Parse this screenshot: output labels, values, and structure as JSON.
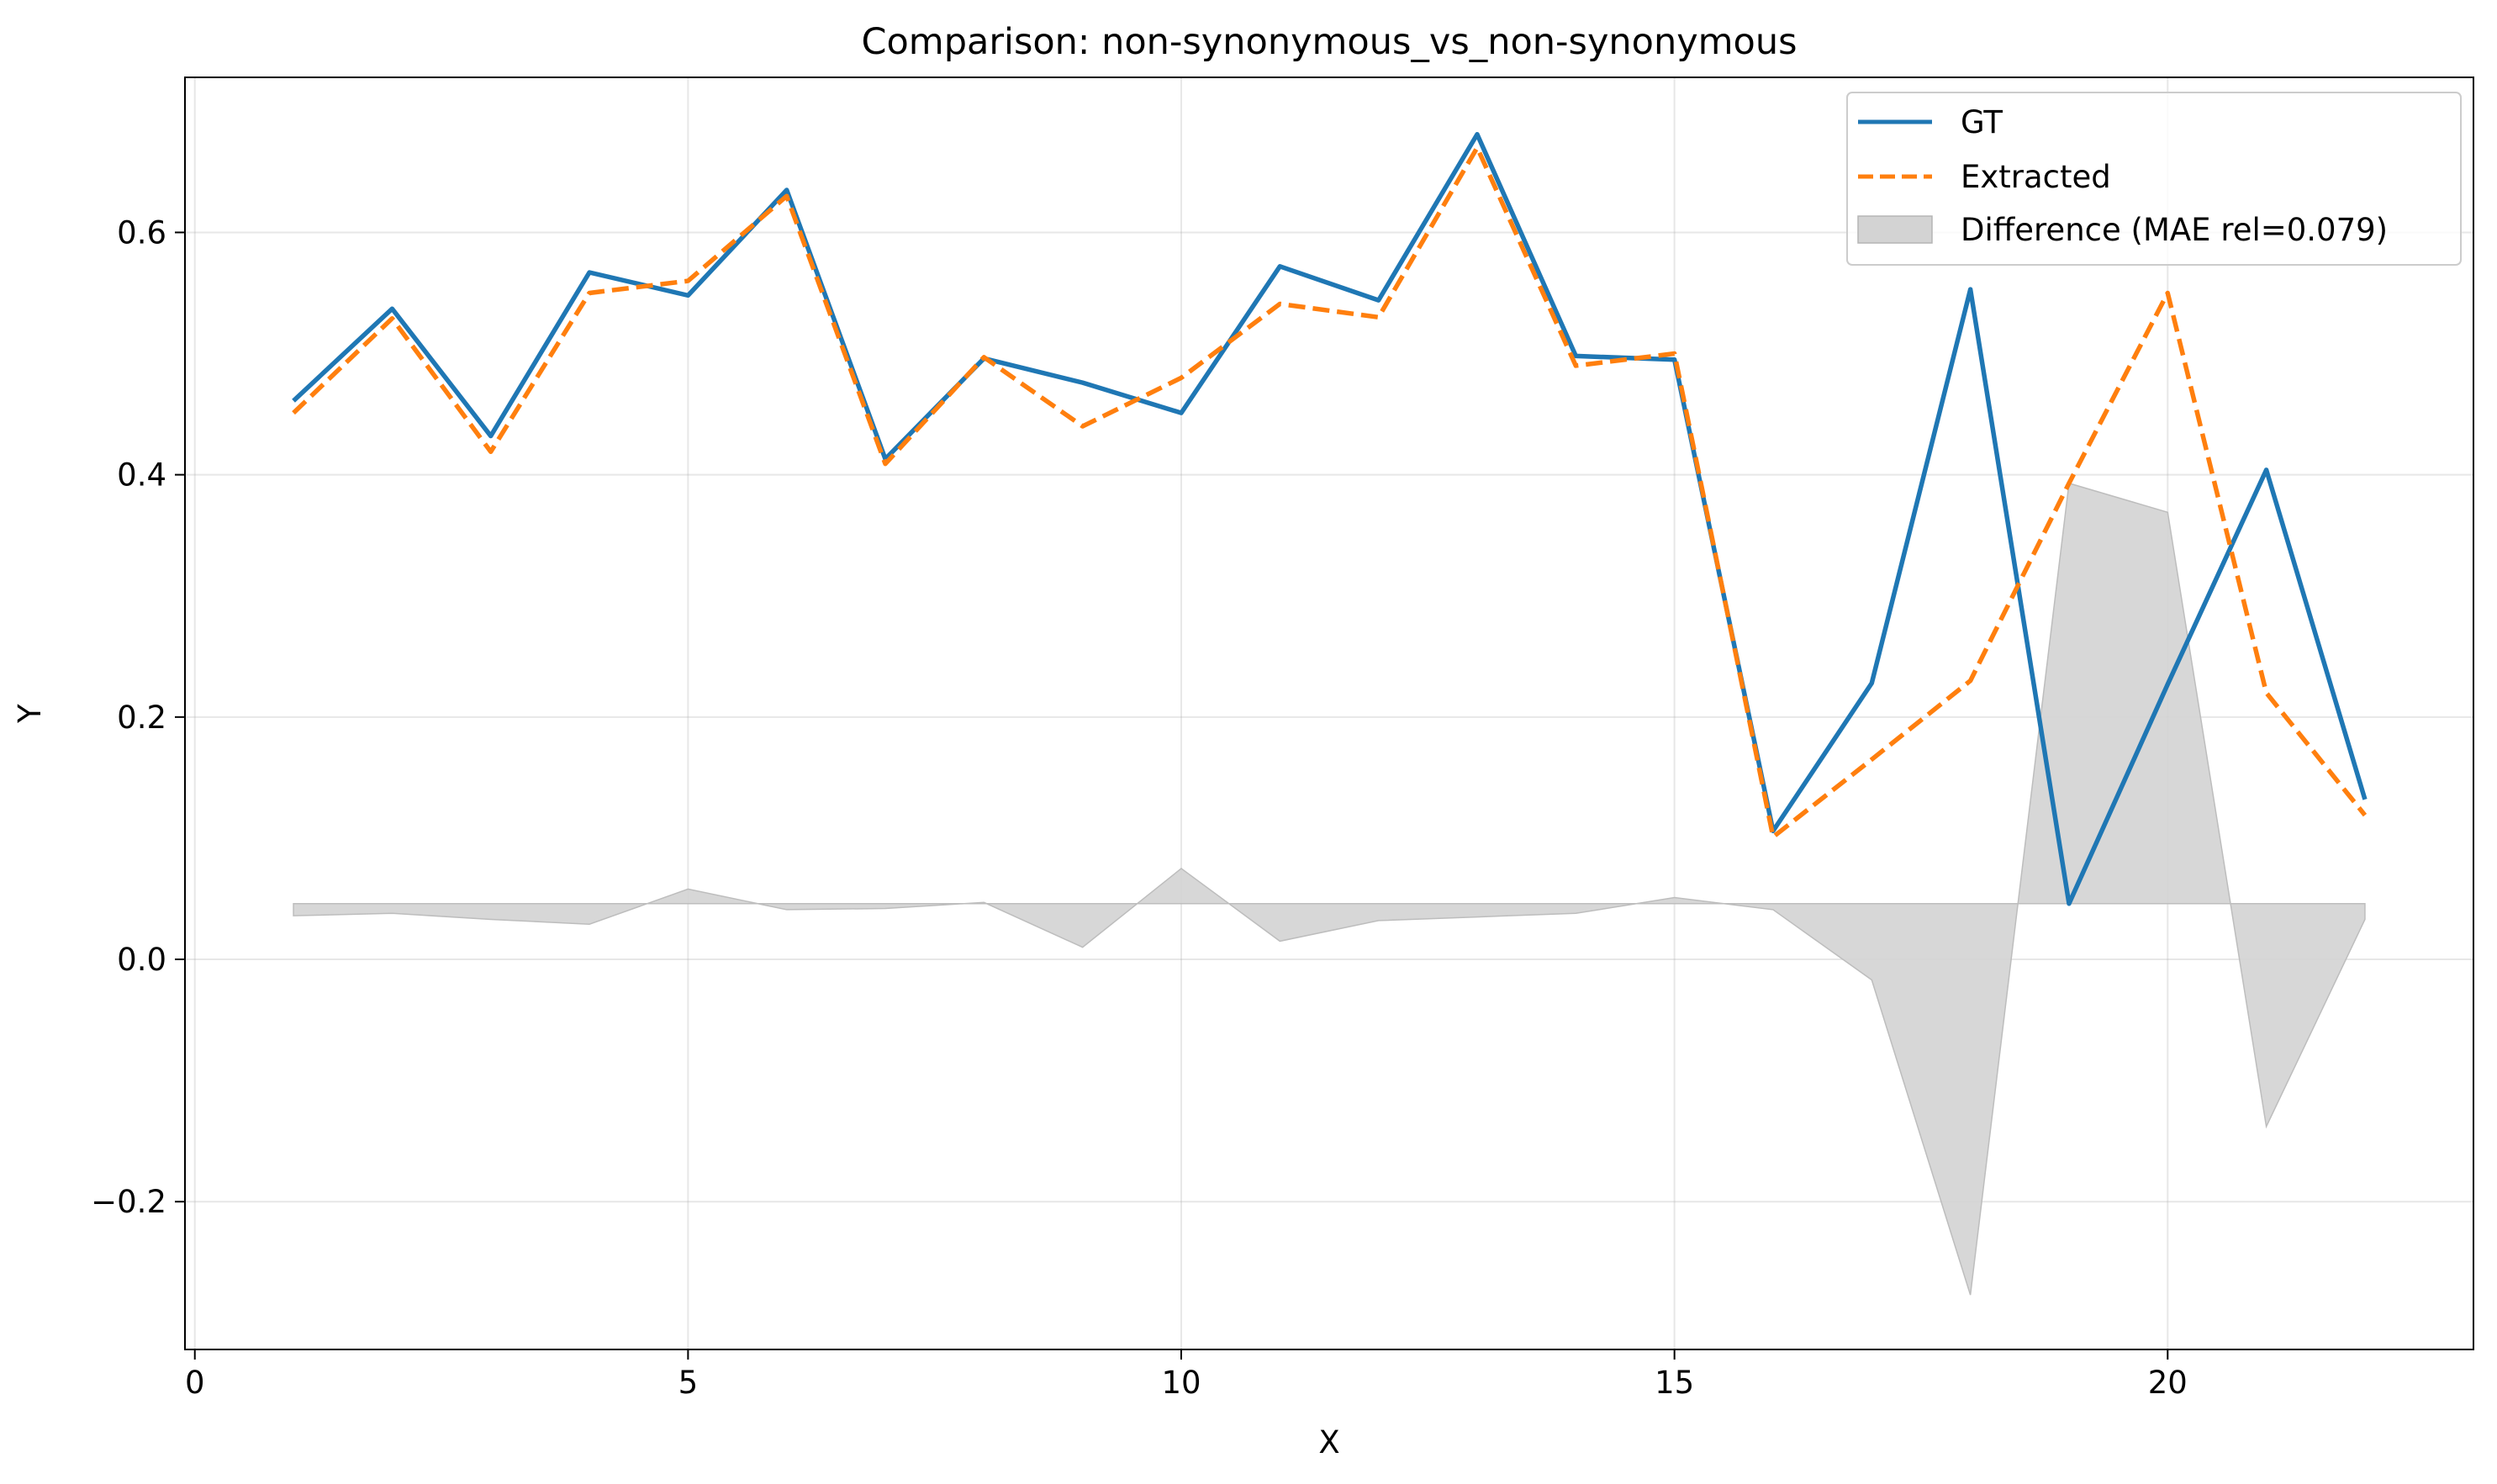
{
  "chart_data": {
    "type": "line",
    "title": "Comparison: non-synonymous_vs_non-synonymous",
    "xlabel": "X",
    "ylabel": "Y",
    "xlim": [
      -0.1,
      23.1
    ],
    "ylim": [
      -0.322,
      0.728
    ],
    "xticks": [
      0,
      5,
      10,
      15,
      20
    ],
    "yticks": [
      -0.2,
      0.0,
      0.2,
      0.4,
      0.6
    ],
    "ytick_labels": [
      "−0.2",
      "0.0",
      "0.2",
      "0.4",
      "0.6"
    ],
    "grid": true,
    "legend_position": "top-right",
    "x": [
      1,
      2,
      3,
      4,
      5,
      6,
      7,
      8,
      9,
      10,
      11,
      12,
      13,
      14,
      15,
      16,
      17,
      18,
      19,
      20,
      21,
      22
    ],
    "series": [
      {
        "name": "GT",
        "style": "solid",
        "color": "#1f77b4",
        "values": [
          0.461,
          0.537,
          0.432,
          0.567,
          0.548,
          0.635,
          0.413,
          0.496,
          0.476,
          0.451,
          0.572,
          0.544,
          0.681,
          0.498,
          0.495,
          0.106,
          0.228,
          0.553,
          0.046,
          0.227,
          0.404,
          0.132
        ]
      },
      {
        "name": "Extracted",
        "style": "dashed",
        "color": "#ff7f0e",
        "values": [
          0.451,
          0.529,
          0.419,
          0.55,
          0.56,
          0.63,
          0.409,
          0.497,
          0.44,
          0.48,
          0.541,
          0.53,
          0.67,
          0.49,
          0.5,
          0.101,
          0.165,
          0.23,
          0.393,
          0.55,
          0.22,
          0.119
        ]
      }
    ],
    "difference": {
      "name": "Difference (MAE rel=0.079)",
      "color": "#d3d3d3",
      "baseline": 0.046,
      "values": [
        0.036,
        0.038,
        0.033,
        0.029,
        0.058,
        0.041,
        0.042,
        0.047,
        0.01,
        0.075,
        0.015,
        0.032,
        0.035,
        0.038,
        0.051,
        0.041,
        -0.017,
        -0.277,
        0.393,
        0.369,
        -0.138,
        0.033
      ]
    }
  }
}
